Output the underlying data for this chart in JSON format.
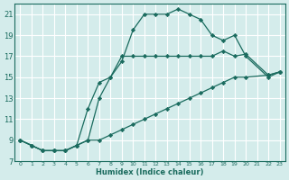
{
  "xlabel": "Humidex (Indice chaleur)",
  "xlim": [
    -0.5,
    23.5
  ],
  "ylim": [
    7,
    22
  ],
  "xticks": [
    0,
    1,
    2,
    3,
    4,
    5,
    6,
    7,
    8,
    9,
    10,
    11,
    12,
    13,
    14,
    15,
    16,
    17,
    18,
    19,
    20,
    21,
    22,
    23
  ],
  "yticks": [
    7,
    9,
    11,
    13,
    15,
    17,
    19,
    21
  ],
  "bg_color": "#d4eceb",
  "grid_color": "#ffffff",
  "line_color": "#1a6b5e",
  "lines": [
    {
      "x": [
        0,
        1,
        2,
        3,
        4,
        5,
        6,
        7,
        8,
        9,
        10,
        11,
        12,
        13,
        14,
        15,
        16,
        17,
        18,
        19,
        20,
        22,
        23
      ],
      "y": [
        9,
        8.5,
        8,
        8,
        8,
        8.5,
        9,
        13,
        15,
        16.5,
        19.5,
        21,
        21,
        21,
        21.5,
        21,
        20.5,
        19,
        18.5,
        19,
        17,
        15,
        15.5
      ]
    },
    {
      "x": [
        0,
        1,
        2,
        3,
        4,
        5,
        6,
        7,
        8,
        9,
        10,
        11,
        12,
        13,
        14,
        15,
        16,
        17,
        18,
        19,
        20,
        22,
        23
      ],
      "y": [
        9,
        8.5,
        8,
        8,
        8,
        8.5,
        12,
        14.5,
        15,
        17,
        17,
        17,
        17,
        17,
        17,
        17,
        17,
        17,
        17.5,
        17,
        17.2,
        15.2,
        15.5
      ]
    },
    {
      "x": [
        0,
        1,
        2,
        3,
        4,
        5,
        6,
        7,
        8,
        9,
        10,
        11,
        12,
        13,
        14,
        15,
        16,
        17,
        18,
        19,
        20,
        22,
        23
      ],
      "y": [
        9,
        8.5,
        8,
        8,
        8,
        8.5,
        9,
        9,
        9.5,
        10,
        10.5,
        11,
        11.5,
        12,
        12.5,
        13,
        13.5,
        14,
        14.5,
        15,
        15,
        15.2,
        15.5
      ]
    }
  ]
}
